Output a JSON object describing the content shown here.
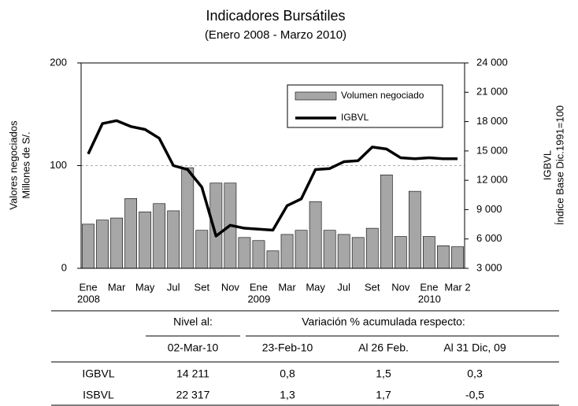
{
  "chart_data": {
    "type": "bar_line",
    "title": "Indicadores Bursátiles",
    "subtitle": "(Enero 2008 - Marzo 2010)",
    "ylabel": [
      "Valores negociados",
      "Millones de S/."
    ],
    "y2label": [
      "IGBVL",
      "Índice Base Dic.1991=100"
    ],
    "categories": [
      "Ene",
      null,
      "Mar",
      null,
      "May",
      null,
      "Jul",
      null,
      "Set",
      null,
      "Nov",
      null,
      "Ene",
      null,
      "Mar",
      null,
      "May",
      null,
      "Jul",
      null,
      "Set",
      null,
      "Nov",
      null,
      "Ene",
      null,
      "Mar 2"
    ],
    "years": [
      "2008",
      null,
      null,
      null,
      null,
      null,
      null,
      null,
      null,
      null,
      null,
      null,
      "2009",
      null,
      null,
      null,
      null,
      null,
      null,
      null,
      null,
      null,
      null,
      null,
      "2010",
      null,
      null
    ],
    "series": [
      {
        "name": "Volumen negociado",
        "color": "#a6a6a6",
        "kind": "bar",
        "values": [
          43,
          47,
          49,
          68,
          55,
          63,
          56,
          98,
          37,
          83,
          83,
          30,
          27,
          17,
          33,
          37,
          65,
          37,
          33,
          30,
          39,
          91,
          31,
          75,
          31,
          22,
          21
        ]
      },
      {
        "name": "IGBVL",
        "color": "#000000",
        "kind": "line",
        "axis": "y2",
        "values": [
          14700,
          17800,
          18100,
          17500,
          17200,
          16300,
          13500,
          13100,
          11300,
          6300,
          7400,
          7100,
          7000,
          6900,
          9400,
          10100,
          13100,
          13200,
          13900,
          14000,
          15400,
          15200,
          14300,
          14200,
          14300,
          14200,
          14200
        ]
      }
    ],
    "ylim": [
      0,
      200
    ],
    "yticks": [
      0,
      100,
      200
    ],
    "y2lim": [
      3000,
      24000
    ],
    "y2ticks": [
      {
        "value": 3000,
        "label": "3 000"
      },
      {
        "value": 6000,
        "label": "6 000"
      },
      {
        "value": 9000,
        "label": "9 000"
      },
      {
        "value": 12000,
        "label": "12 000"
      },
      {
        "value": 15000,
        "label": "15 000"
      },
      {
        "value": 18000,
        "label": "18 000"
      },
      {
        "value": 21000,
        "label": "21 000"
      },
      {
        "value": 24000,
        "label": "24 000"
      }
    ],
    "grid": true,
    "legend": "upper right"
  },
  "table": {
    "header1": [
      "",
      "Nivel al:",
      "Variación % acumulada respecto:"
    ],
    "header2": [
      "",
      "02-Mar-10",
      "23-Feb-10",
      "Al 26 Feb.",
      "Al 31 Dic, 09"
    ],
    "rows": [
      [
        "IGBVL",
        "14 211",
        "0,8",
        "1,5",
        "0,3"
      ],
      [
        "ISBVL",
        "22 317",
        "1,3",
        "1,7",
        "-0,5"
      ]
    ]
  }
}
